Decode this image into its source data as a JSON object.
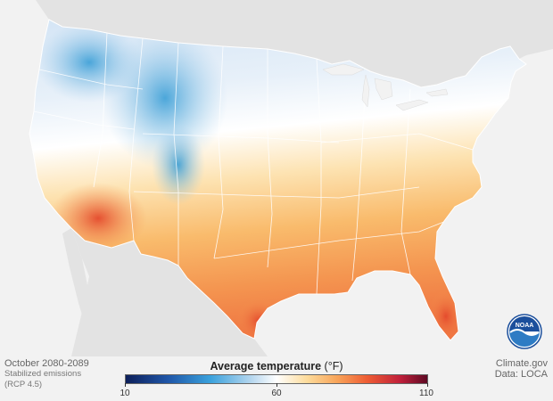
{
  "map": {
    "region": "Contiguous United States",
    "variable": "Average temperature",
    "colorscale": [
      "#0d1f5a",
      "#1f56a8",
      "#3aa1dc",
      "#b9d8ef",
      "#ffffff",
      "#fddc9c",
      "#f8a55a",
      "#ee5d34",
      "#c0203b",
      "#5e0a24"
    ]
  },
  "footer": {
    "period": "October 2080-2089",
    "scenario_line1": "Stabilized emissions",
    "scenario_line2": "(RCP 4.5)",
    "credit": "Climate.gov",
    "data_source": "Data: LOCA"
  },
  "legend": {
    "title": "Average temperature",
    "unit": "(°F)",
    "min_label": "10",
    "mid_label": "60",
    "max_label": "110"
  },
  "logo": {
    "text": "NOAA"
  }
}
